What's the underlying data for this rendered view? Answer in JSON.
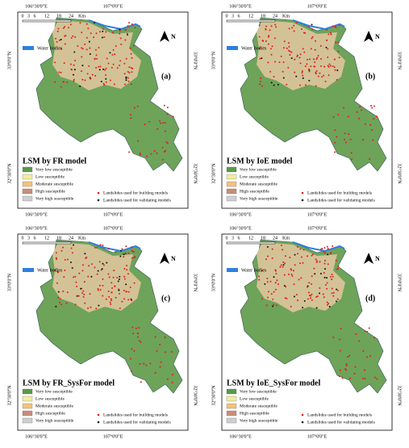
{
  "coordinates": {
    "top": [
      "106°30'0\"E",
      "107°0'0\"E"
    ],
    "side": [
      "33°0'0\"N",
      "32°30'0\"N"
    ]
  },
  "scale_bar": {
    "ticks": [
      0,
      3,
      6,
      12,
      18,
      24
    ],
    "unit": "Km"
  },
  "north": "N",
  "water": "Water bodies",
  "legend": {
    "classes": [
      "Very low susceptible",
      "Low susceptible",
      "Moderate susceptible",
      "High susceptible",
      "Very high susceptible"
    ],
    "points": [
      "Landslides used for building models",
      "Landslides used for validating models"
    ]
  },
  "panels": [
    {
      "label": "(a)",
      "title": "LSM by FR model"
    },
    {
      "label": "(b)",
      "title": "LSM by IoE model"
    },
    {
      "label": "(c)",
      "title": "LSM by FR_SysFor model"
    },
    {
      "label": "(d)",
      "title": "LSM by IoE_SysFor model"
    }
  ]
}
